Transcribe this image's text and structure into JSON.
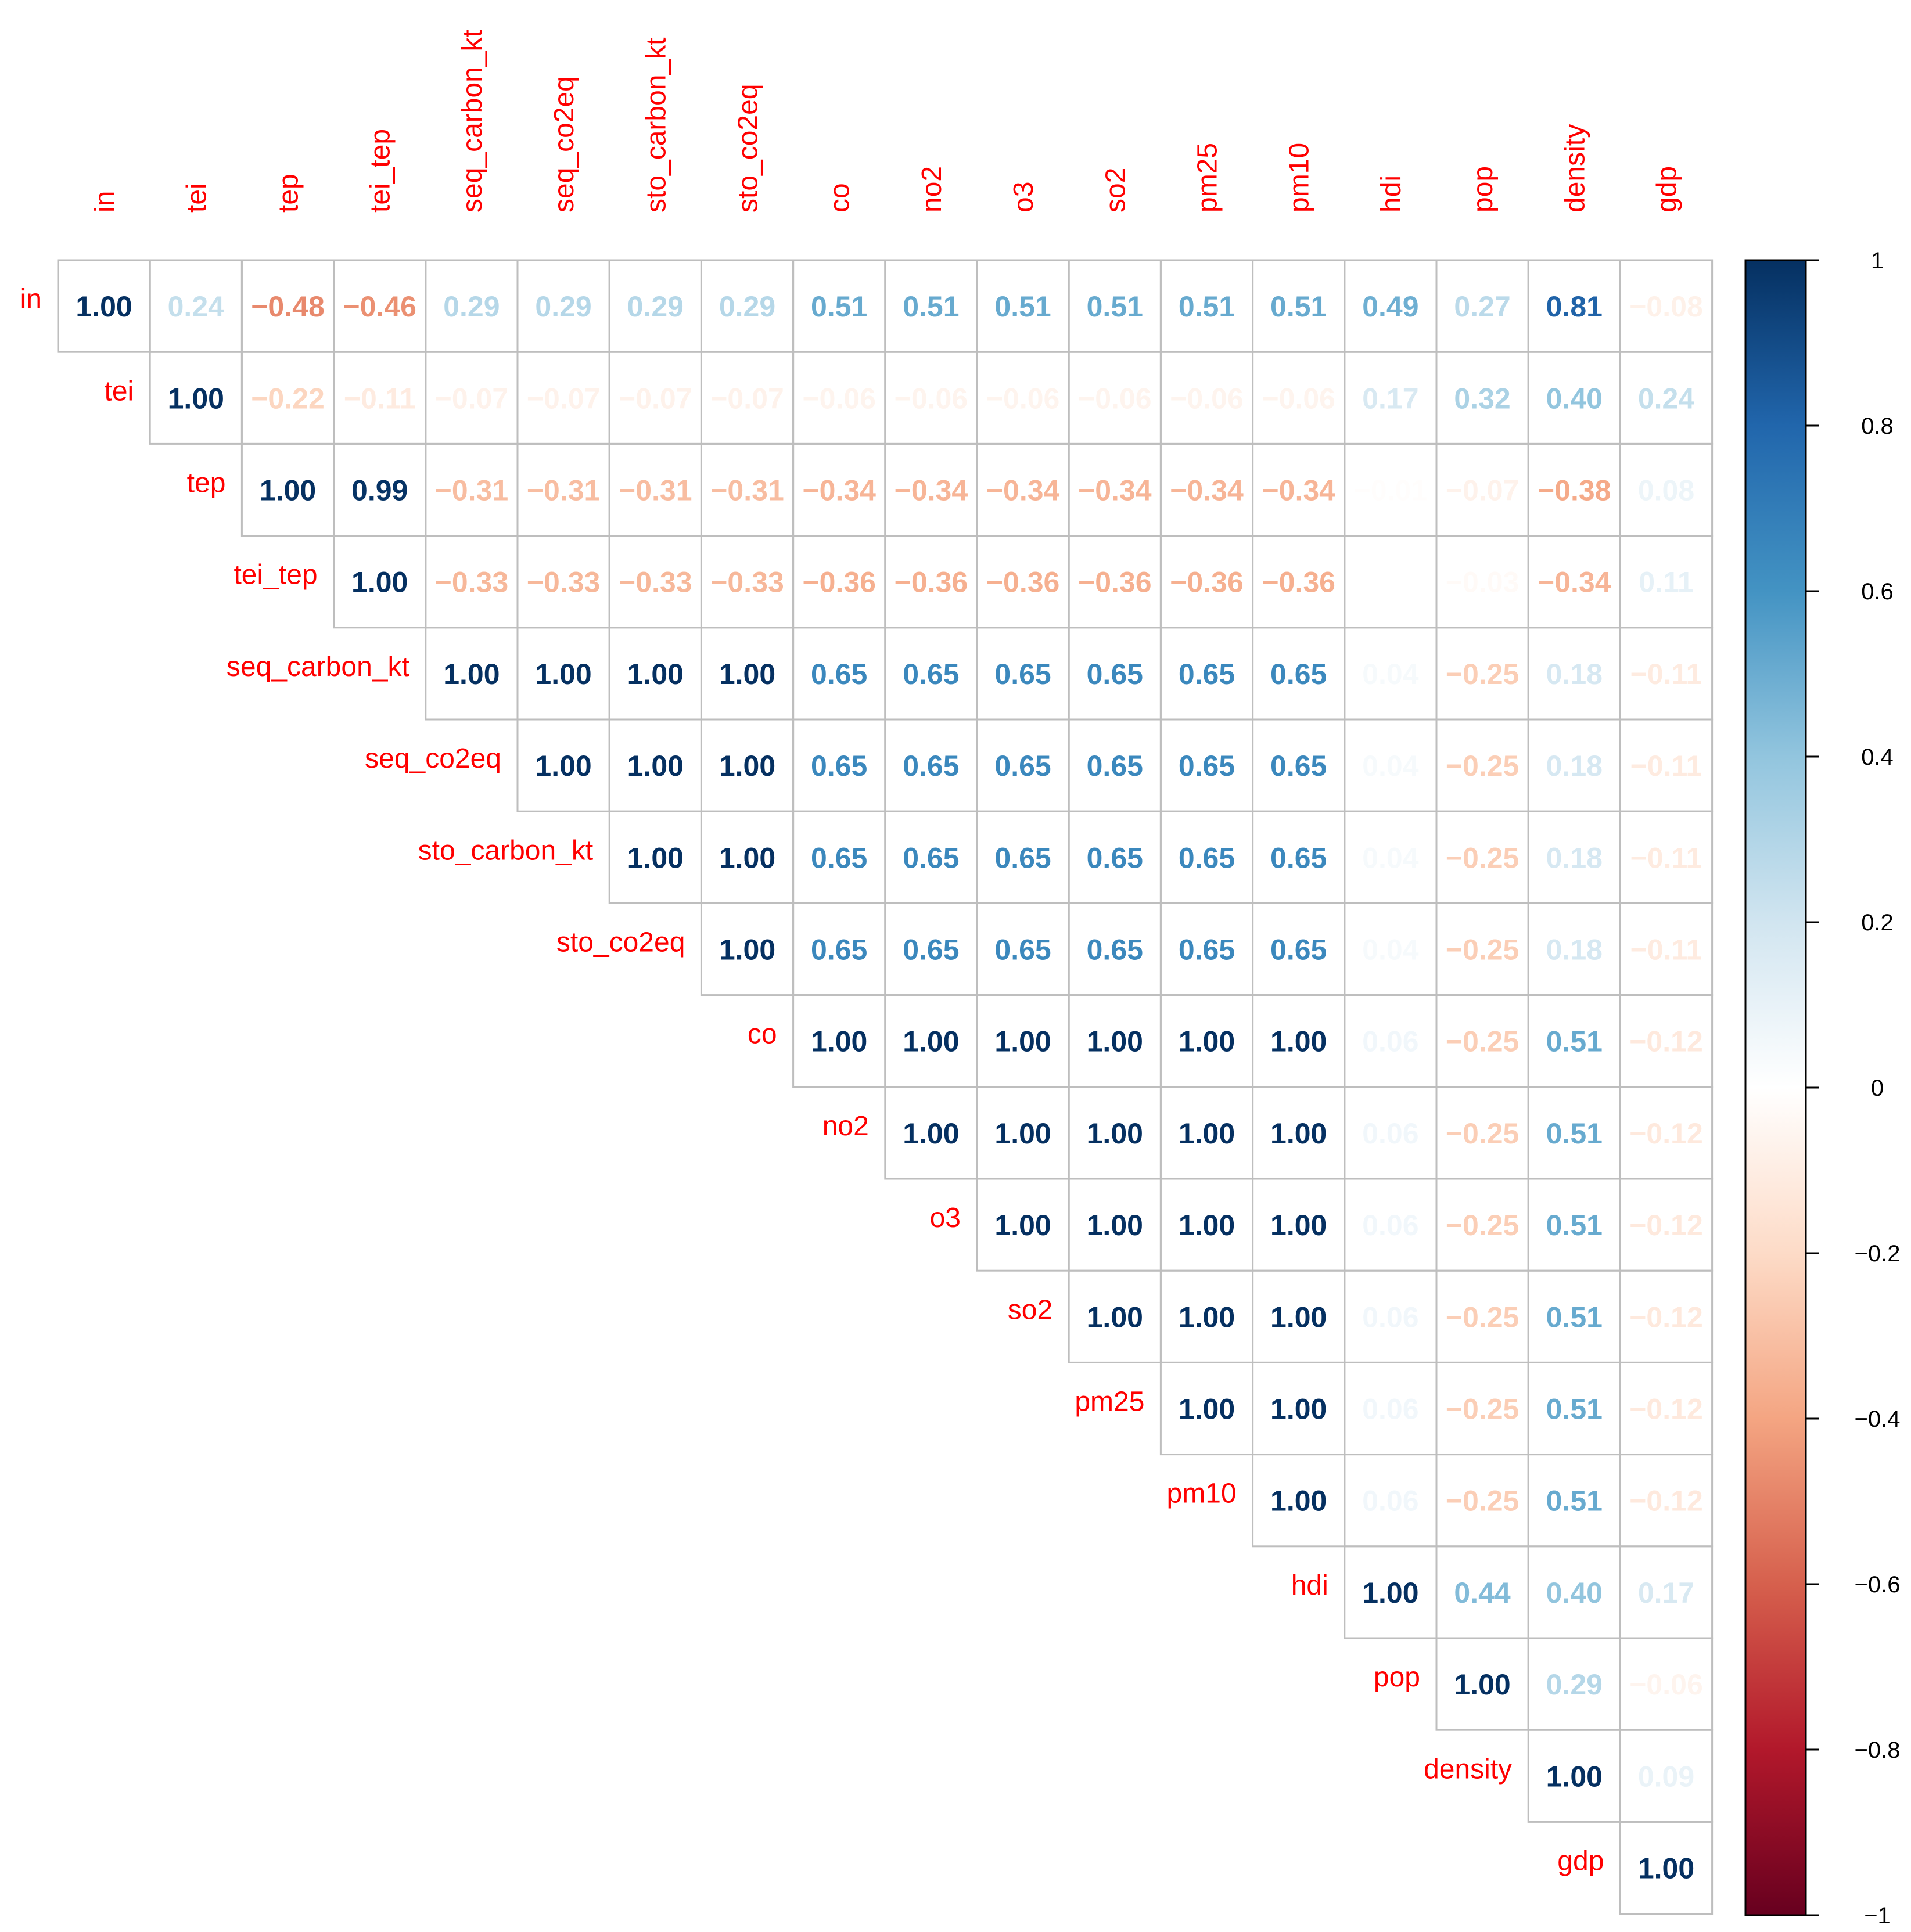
{
  "chart_data": {
    "type": "heatmap",
    "subtype": "correlation-matrix-upper-triangle",
    "variables": [
      "in",
      "tei",
      "tep",
      "tei_tep",
      "seq_carbon_kt",
      "seq_co2eq",
      "sto_carbon_kt",
      "sto_co2eq",
      "co",
      "no2",
      "o3",
      "so2",
      "pm25",
      "pm10",
      "hdi",
      "pop",
      "density",
      "gdp"
    ],
    "rows": [
      [
        "1.00",
        "0.24",
        "−0.48",
        "−0.46",
        "0.29",
        "0.29",
        "0.29",
        "0.29",
        "0.51",
        "0.51",
        "0.51",
        "0.51",
        "0.51",
        "0.51",
        "0.49",
        "0.27",
        "0.81",
        "−0.08"
      ],
      [
        "1.00",
        "−0.22",
        "−0.11",
        "−0.07",
        "−0.07",
        "−0.07",
        "−0.07",
        "−0.06",
        "−0.06",
        "−0.06",
        "−0.06",
        "−0.06",
        "−0.06",
        "0.17",
        "0.32",
        "0.40",
        "0.24"
      ],
      [
        "1.00",
        "0.99",
        "−0.31",
        "−0.31",
        "−0.31",
        "−0.31",
        "−0.34",
        "−0.34",
        "−0.34",
        "−0.34",
        "−0.34",
        "−0.34",
        "−0.01",
        "−0.07",
        "−0.38",
        "0.08"
      ],
      [
        "1.00",
        "−0.33",
        "−0.33",
        "−0.33",
        "−0.33",
        "−0.36",
        "−0.36",
        "−0.36",
        "−0.36",
        "−0.36",
        "−0.36",
        "0.00",
        "−0.03",
        "−0.34",
        "0.11"
      ],
      [
        "1.00",
        "1.00",
        "1.00",
        "1.00",
        "0.65",
        "0.65",
        "0.65",
        "0.65",
        "0.65",
        "0.65",
        "0.04",
        "−0.25",
        "0.18",
        "−0.11"
      ],
      [
        "1.00",
        "1.00",
        "1.00",
        "0.65",
        "0.65",
        "0.65",
        "0.65",
        "0.65",
        "0.65",
        "0.04",
        "−0.25",
        "0.18",
        "−0.11"
      ],
      [
        "1.00",
        "1.00",
        "0.65",
        "0.65",
        "0.65",
        "0.65",
        "0.65",
        "0.65",
        "0.04",
        "−0.25",
        "0.18",
        "−0.11"
      ],
      [
        "1.00",
        "0.65",
        "0.65",
        "0.65",
        "0.65",
        "0.65",
        "0.65",
        "0.04",
        "−0.25",
        "0.18",
        "−0.11"
      ],
      [
        "1.00",
        "1.00",
        "1.00",
        "1.00",
        "1.00",
        "1.00",
        "0.06",
        "−0.25",
        "0.51",
        "−0.12"
      ],
      [
        "1.00",
        "1.00",
        "1.00",
        "1.00",
        "1.00",
        "0.06",
        "−0.25",
        "0.51",
        "−0.12"
      ],
      [
        "1.00",
        "1.00",
        "1.00",
        "1.00",
        "0.06",
        "−0.25",
        "0.51",
        "−0.12"
      ],
      [
        "1.00",
        "1.00",
        "1.00",
        "0.06",
        "−0.25",
        "0.51",
        "−0.12"
      ],
      [
        "1.00",
        "1.00",
        "0.06",
        "−0.25",
        "0.51",
        "−0.12"
      ],
      [
        "1.00",
        "0.06",
        "−0.25",
        "0.51",
        "−0.12"
      ],
      [
        "1.00",
        "0.44",
        "0.40",
        "0.17"
      ],
      [
        "1.00",
        "0.29",
        "−0.06"
      ],
      [
        "1.00",
        "0.09"
      ],
      [
        "1.00"
      ]
    ],
    "colorbar": {
      "range": [
        -1,
        1
      ],
      "ticks": [
        "1",
        "0.8",
        "0.6",
        "0.4",
        "0.2",
        "0",
        "−0.2",
        "−0.4",
        "−0.6",
        "−0.8",
        "−1"
      ]
    },
    "palette": [
      "#67001F",
      "#B2182B",
      "#D6604D",
      "#F4A582",
      "#FDDBC7",
      "#FFFFFF",
      "#D1E5F0",
      "#92C5DE",
      "#4393C3",
      "#2166AC",
      "#053061"
    ],
    "text_color_high_abs": "#08306B",
    "label_color": "#FF0000",
    "grid_color": "#BEBEBE"
  }
}
